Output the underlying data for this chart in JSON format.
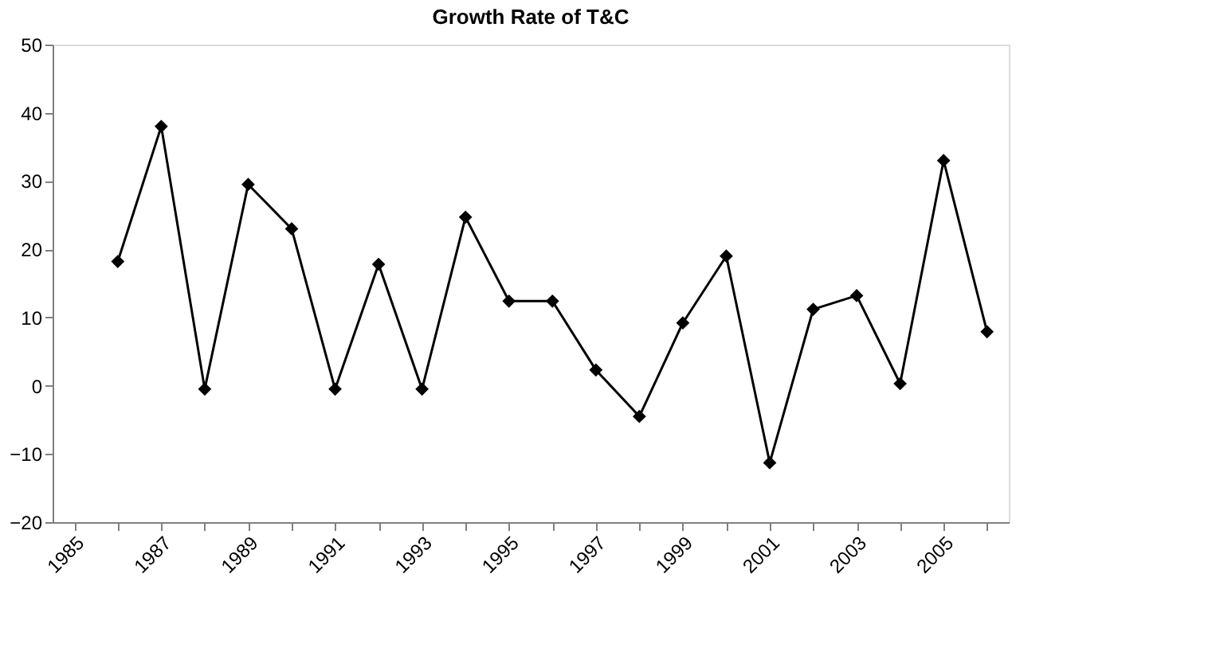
{
  "chart_data": {
    "type": "line",
    "title": "Growth Rate of T&C",
    "categories": [
      "1985",
      null,
      "1987",
      null,
      "1989",
      null,
      "1991",
      null,
      "1993",
      null,
      "1995",
      null,
      "1997",
      null,
      "1999",
      null,
      "2001",
      null,
      "2003",
      null,
      "2005",
      null
    ],
    "series": [
      {
        "color": "#000000",
        "values": [
          null,
          18.2,
          38,
          -0.5,
          29.5,
          23,
          -0.5,
          17.8,
          -0.5,
          24.7,
          12.4,
          12.4,
          2.3,
          -4.5,
          9.2,
          19,
          -11.3,
          11.2,
          13.2,
          0.3,
          33,
          7.9
        ]
      }
    ],
    "ylim": [
      -20,
      50
    ],
    "yticks": [
      -20,
      -10,
      0,
      10,
      20,
      30,
      40,
      50
    ],
    "grid": false,
    "marker": "diamond",
    "line_style": "solid"
  }
}
